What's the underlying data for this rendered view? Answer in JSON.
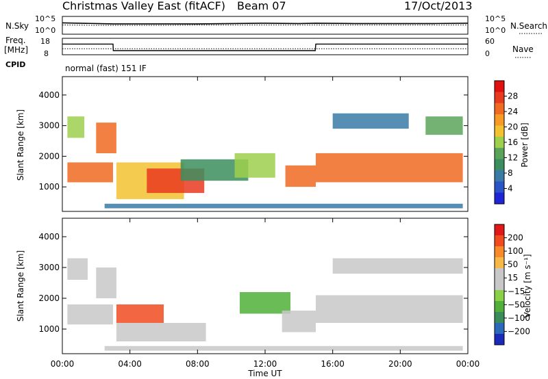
{
  "header": {
    "title": "Christmas Valley East (fitACF)",
    "beam": "Beam 07",
    "date": "17/Oct/2013",
    "cpid_label": "CPID",
    "cpid_value": "normal (fast) 151 IF"
  },
  "noise_panel": {
    "left_label": "N.Sky",
    "right_label": "N.Search",
    "left_ticks": [
      "10^5",
      "10^0"
    ],
    "right_ticks": [
      "10^5",
      "10^0"
    ]
  },
  "freq_panel": {
    "left_label_1": "Freq.",
    "left_label_2": "[MHz]",
    "left_ticks": [
      "18",
      "8"
    ],
    "right_label": "Nave",
    "right_ticks": [
      "60",
      "0"
    ]
  },
  "colors": {
    "power_scale": [
      "#1f24d6",
      "#2a54c8",
      "#3a7aa6",
      "#3c8e5e",
      "#5aa45a",
      "#9ed04e",
      "#f2c230",
      "#f89a26",
      "#f06a22",
      "#e83a1e",
      "#e01010"
    ],
    "velocity_scale": [
      "#e01818",
      "#f04c20",
      "#f88a2c",
      "#f8b848",
      "#c8c8c8",
      "#c8c8c8",
      "#8ad048",
      "#50b03a",
      "#3a8c5a",
      "#2a6ab8",
      "#1a2ab8"
    ]
  },
  "chart_data": [
    {
      "type": "line",
      "title": "N.Sky / N.Search",
      "x": [
        "00:00",
        "02:00",
        "03:00",
        "06:00",
        "08:00",
        "10:00",
        "12:00",
        "14:00",
        "15:00",
        "17:15",
        "19:00",
        "20:30",
        "22:00",
        "24:00"
      ],
      "series": [
        {
          "name": "N.Sky",
          "values": [
            3.2,
            3.0,
            2.9,
            2.9,
            2.9,
            3.0,
            3.1,
            3.0,
            3.1,
            3.0,
            3.0,
            3.0,
            3.0,
            3.1
          ]
        },
        {
          "name": "N.Search",
          "values": [
            2.6,
            2.5,
            2.5,
            2.5,
            2.6,
            2.6,
            2.6,
            2.6,
            2.6,
            2.6,
            2.6,
            2.6,
            2.6,
            2.6
          ]
        }
      ],
      "ylim": [
        0,
        5
      ],
      "ylabel": "N.Sky",
      "ylabel_right": "N.Search"
    },
    {
      "type": "line",
      "x": [
        "00:00",
        "03:00",
        "03:01",
        "14:58",
        "15:00",
        "24:00"
      ],
      "series": [
        {
          "name": "Freq.",
          "values": [
            14.5,
            14.5,
            10.5,
            10.5,
            14.5,
            14.5
          ]
        },
        {
          "name": "Nave",
          "values": [
            22,
            22,
            22,
            22,
            22,
            22
          ]
        }
      ],
      "ylim": [
        8,
        18
      ],
      "ylabel": "Freq. [MHz]",
      "ylabel_right": "Nave"
    },
    {
      "type": "heatmap",
      "ylabel": "Slant Range [km]",
      "yticks": [
        "1000",
        "2000",
        "3000",
        "4000"
      ],
      "ylim": [
        200,
        4600
      ],
      "xlim": [
        "00:00",
        "24:00"
      ],
      "colorbar_label": "Power [dB]",
      "colorbar_ticks": [
        "4",
        "8",
        "12",
        "16",
        "20",
        "24",
        "28"
      ],
      "colorbar_range": [
        0,
        30
      ],
      "bands": [
        {
          "t0": 0.3,
          "t1": 3.0,
          "r0": 1150,
          "r1": 1800,
          "value": 24
        },
        {
          "t0": 2.0,
          "t1": 3.2,
          "r0": 2100,
          "r1": 3100,
          "value": 22
        },
        {
          "t0": 0.3,
          "t1": 1.3,
          "r0": 2600,
          "r1": 3300,
          "value": 14
        },
        {
          "t0": 3.2,
          "t1": 7.2,
          "r0": 600,
          "r1": 1800,
          "value": 18
        },
        {
          "t0": 5.0,
          "t1": 8.4,
          "r0": 800,
          "r1": 1600,
          "value": 26
        },
        {
          "t0": 7.0,
          "t1": 11.0,
          "r0": 1200,
          "r1": 1900,
          "value": 10
        },
        {
          "t0": 10.2,
          "t1": 12.6,
          "r0": 1300,
          "r1": 2100,
          "value": 14
        },
        {
          "t0": 13.2,
          "t1": 15.0,
          "r0": 1000,
          "r1": 1700,
          "value": 22
        },
        {
          "t0": 15.0,
          "t1": 23.7,
          "r0": 1150,
          "r1": 2100,
          "value": 24
        },
        {
          "t0": 16.0,
          "t1": 20.5,
          "r0": 2900,
          "r1": 3400,
          "value": 8
        },
        {
          "t0": 21.5,
          "t1": 23.7,
          "r0": 2700,
          "r1": 3300,
          "value": 12
        },
        {
          "t0": 2.5,
          "t1": 23.7,
          "r0": 300,
          "r1": 450,
          "value": 6
        }
      ]
    },
    {
      "type": "heatmap",
      "ylabel": "Slant Range [km]",
      "yticks": [
        "1000",
        "2000",
        "3000",
        "4000"
      ],
      "ylim": [
        200,
        4600
      ],
      "xlim": [
        "00:00",
        "24:00"
      ],
      "xticks": [
        "00:00",
        "04:00",
        "08:00",
        "12:00",
        "16:00",
        "20:00",
        "00:00"
      ],
      "xlabel": "Time UT",
      "colorbar_label": "Velocity [m s⁻¹]",
      "colorbar_ticks": [
        "200",
        "100",
        "50",
        "15",
        "−15",
        "−50",
        "−100",
        "−200"
      ],
      "colorbar_range": [
        -250,
        250
      ],
      "bands": [
        {
          "t0": 0.3,
          "t1": 3.0,
          "r0": 1150,
          "r1": 1800,
          "value": 0
        },
        {
          "t0": 0.3,
          "t1": 1.5,
          "r0": 2600,
          "r1": 3300,
          "value": 0
        },
        {
          "t0": 2.0,
          "t1": 3.2,
          "r0": 2000,
          "r1": 3000,
          "value": 0
        },
        {
          "t0": 3.2,
          "t1": 6.0,
          "r0": 1200,
          "r1": 1800,
          "value": 200
        },
        {
          "t0": 3.2,
          "t1": 8.5,
          "r0": 600,
          "r1": 1200,
          "value": 60
        },
        {
          "t0": 10.5,
          "t1": 13.5,
          "r0": 1500,
          "r1": 2200,
          "value": -80
        },
        {
          "t0": 13.0,
          "t1": 15.0,
          "r0": 900,
          "r1": 1600,
          "value": 40
        },
        {
          "t0": 15.0,
          "t1": 23.7,
          "r0": 1200,
          "r1": 2100,
          "value": 0
        },
        {
          "t0": 16.0,
          "t1": 23.7,
          "r0": 2800,
          "r1": 3300,
          "value": 0
        },
        {
          "t0": 2.5,
          "t1": 23.7,
          "r0": 300,
          "r1": 450,
          "value": 40
        }
      ]
    }
  ]
}
